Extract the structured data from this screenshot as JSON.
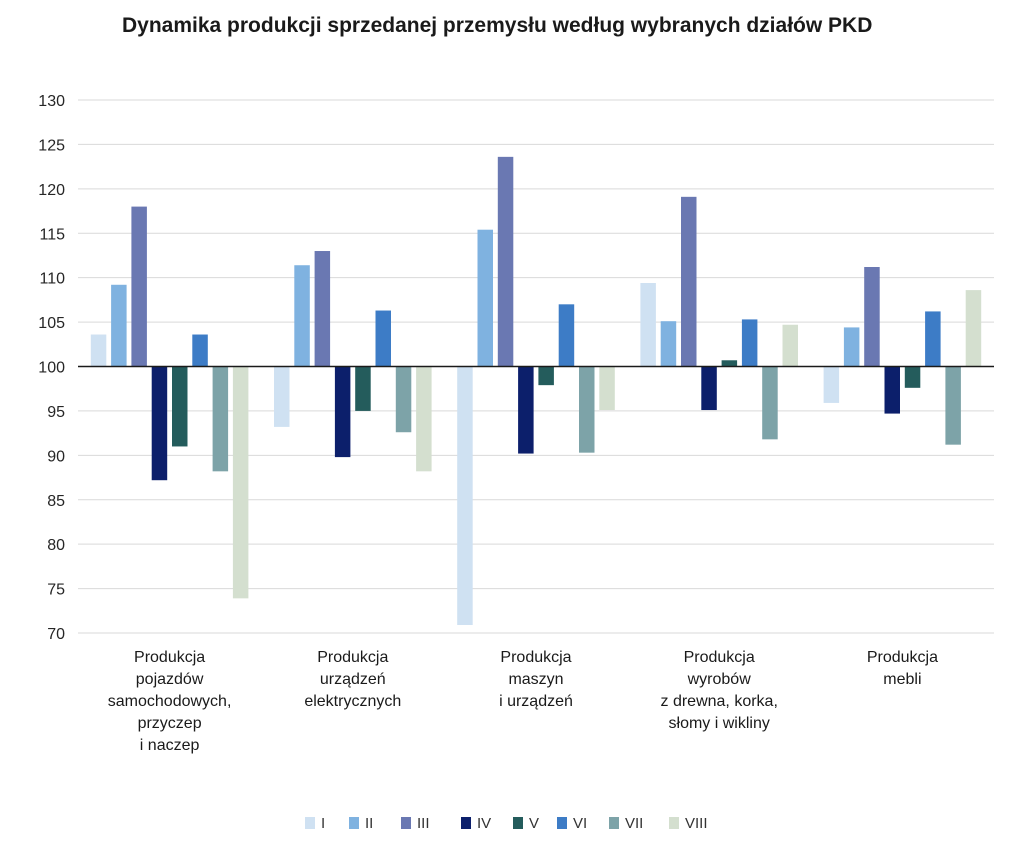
{
  "chart_data": {
    "type": "bar",
    "title": "Dynamika produkcji sprzedanej przemysłu według wybranych działów PKD",
    "xlabel": "",
    "ylabel": "",
    "ylim": [
      70,
      130
    ],
    "ytick_step": 5,
    "baseline": 100,
    "legend_position": "bottom-center",
    "grid": true,
    "categories": [
      "Produkcja pojazdów samochodowych, przyczep i naczep",
      "Produkcja urządzeń elektrycznych",
      "Produkcja maszyn i urządzeń",
      "Produkcja wyrobów z drewna, korka, słomy i wikliny",
      "Produkcja mebli"
    ],
    "category_label_lines": [
      [
        "Produkcja",
        "pojazdów",
        "samochodowych,",
        "przyczep",
        "i naczep"
      ],
      [
        "Produkcja",
        "urządzeń",
        "elektrycznych"
      ],
      [
        "Produkcja",
        "maszyn",
        "i urządzeń"
      ],
      [
        "Produkcja",
        "wyrobów",
        "z drewna, korka,",
        "słomy i wikliny"
      ],
      [
        "Produkcja",
        "mebli"
      ]
    ],
    "series": [
      {
        "name": "I",
        "color": "#cfe1f2",
        "values": [
          103.6,
          93.2,
          70.9,
          109.4,
          95.9
        ]
      },
      {
        "name": "II",
        "color": "#7fb2e0",
        "values": [
          109.2,
          111.4,
          115.4,
          105.1,
          104.4
        ]
      },
      {
        "name": "III",
        "color": "#6a78b2",
        "values": [
          118.0,
          113.0,
          123.6,
          119.1,
          111.2
        ]
      },
      {
        "name": "IV",
        "color": "#0c1f6b",
        "values": [
          87.2,
          89.8,
          90.2,
          95.1,
          94.7
        ]
      },
      {
        "name": "V",
        "color": "#245c5c",
        "values": [
          91.0,
          95.0,
          97.9,
          100.7,
          97.6
        ]
      },
      {
        "name": "VI",
        "color": "#3d7cc6",
        "values": [
          103.6,
          106.3,
          107.0,
          105.3,
          106.2
        ]
      },
      {
        "name": "VII",
        "color": "#7da3a8",
        "values": [
          88.2,
          92.6,
          90.3,
          91.8,
          91.2
        ]
      },
      {
        "name": "VIII",
        "color": "#d4dfcf",
        "values": [
          73.9,
          88.2,
          95.1,
          104.7,
          108.6
        ]
      }
    ]
  }
}
